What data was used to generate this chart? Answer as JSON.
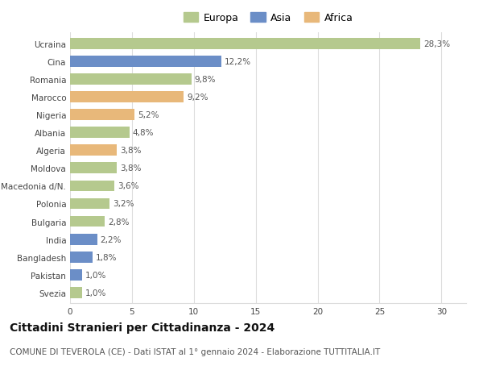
{
  "categories": [
    "Ucraina",
    "Cina",
    "Romania",
    "Marocco",
    "Nigeria",
    "Albania",
    "Algeria",
    "Moldova",
    "Macedonia d/N.",
    "Polonia",
    "Bulgaria",
    "India",
    "Bangladesh",
    "Pakistan",
    "Svezia"
  ],
  "values": [
    28.3,
    12.2,
    9.8,
    9.2,
    5.2,
    4.8,
    3.8,
    3.8,
    3.6,
    3.2,
    2.8,
    2.2,
    1.8,
    1.0,
    1.0
  ],
  "labels": [
    "28,3%",
    "12,2%",
    "9,8%",
    "9,2%",
    "5,2%",
    "4,8%",
    "3,8%",
    "3,8%",
    "3,6%",
    "3,2%",
    "2,8%",
    "2,2%",
    "1,8%",
    "1,0%",
    "1,0%"
  ],
  "continents": [
    "Europa",
    "Asia",
    "Europa",
    "Africa",
    "Africa",
    "Europa",
    "Africa",
    "Europa",
    "Europa",
    "Europa",
    "Europa",
    "Asia",
    "Asia",
    "Asia",
    "Europa"
  ],
  "colors": {
    "Europa": "#b5c98e",
    "Asia": "#6b8ec7",
    "Africa": "#e8b87a"
  },
  "title": "Cittadini Stranieri per Cittadinanza - 2024",
  "subtitle": "COMUNE DI TEVEROLA (CE) - Dati ISTAT al 1° gennaio 2024 - Elaborazione TUTTITALIA.IT",
  "xlim": [
    0,
    32
  ],
  "xticks": [
    0,
    5,
    10,
    15,
    20,
    25,
    30
  ],
  "background_color": "#ffffff",
  "grid_color": "#dddddd",
  "bar_height": 0.62,
  "label_fontsize": 7.5,
  "title_fontsize": 10,
  "subtitle_fontsize": 7.5,
  "tick_fontsize": 7.5,
  "legend_fontsize": 9
}
